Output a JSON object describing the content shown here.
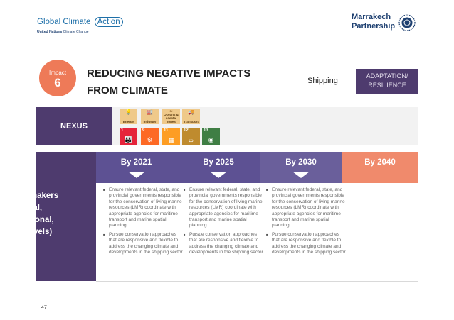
{
  "header": {
    "gca_logo": {
      "title_main": "Global Climate",
      "title_action": "Action",
      "subtitle_bold": "United Nations",
      "subtitle_rest": "Climate Change"
    },
    "mp_logo": {
      "line1": "Marrakech",
      "line2": "Partnership"
    }
  },
  "impact": {
    "label": "Impact",
    "number": "6"
  },
  "title": {
    "line1": "REDUCING NEGATIVE IMPACTS",
    "line2": "FROM CLIMATE"
  },
  "sector": "Shipping",
  "focus_area": {
    "line1": "ADAPTATION/",
    "line2": "RESILIENCE"
  },
  "nexus": {
    "label": "NEXUS",
    "icons": [
      {
        "name": "energy",
        "symbol": "💡",
        "label": "Energy"
      },
      {
        "name": "industry",
        "symbol": "🏭",
        "label": "Industry"
      },
      {
        "name": "oceans",
        "symbol": "≈",
        "label": "Oceans & coastal zones"
      },
      {
        "name": "transport",
        "symbol": "🚚",
        "label": "Transport"
      }
    ],
    "sdgs": [
      {
        "number": "1",
        "color": "#e5243b",
        "glyph": "👪"
      },
      {
        "number": "9",
        "color": "#fd6925",
        "glyph": "⚙"
      },
      {
        "number": "11",
        "color": "#fd9d24",
        "glyph": "▦"
      },
      {
        "number": "12",
        "color": "#bf8b2e",
        "glyph": "∞"
      },
      {
        "number": "13",
        "color": "#3f7e44",
        "glyph": "◉"
      }
    ]
  },
  "table": {
    "stakeholder": {
      "line1": "Policymakers",
      "line2": "(national,",
      "line3": "subnational,",
      "line4": "local levels)"
    },
    "milestones": [
      {
        "label": "By 2021",
        "color": "#5d5193"
      },
      {
        "label": "By 2025",
        "color": "#5d5193"
      },
      {
        "label": "By 2030",
        "color": "#6a5f9b"
      },
      {
        "label": "By 2040",
        "color": "#f08a6c"
      }
    ],
    "cells": [
      [
        "Ensure relevant federal, state, and provincial governments responsible for the conservation of living marine resources (LMR) coordinate with appropriate agencies for maritime transport and marine spatial planning",
        "Pursue conservation approaches that are responsive and flexible to address the changing climate and developments in the shipping sector"
      ],
      [
        "Ensure relevant federal, state, and provincial governments responsible for the conservation of living marine resources (LMR) coordinate with appropriate agencies for maritime transport and marine spatial planning",
        "Pursue conservation approaches that are responsive and flexible to address the changing climate and developments in the shipping sector"
      ],
      [
        "Ensure relevant federal, state, and provincial governments responsible for the conservation of living marine resources (LMR) coordinate with appropriate agencies for maritime transport and marine spatial planning",
        "Pursue conservation approaches that are responsive and flexible to address the changing climate and developments in the shipping sector"
      ]
    ]
  },
  "page_number": "47",
  "colors": {
    "purple": "#4e3b6e",
    "coral": "#ee7a58",
    "blue": "#1d6fa8"
  }
}
